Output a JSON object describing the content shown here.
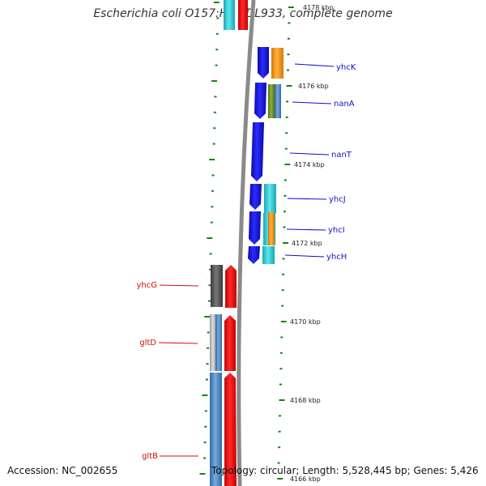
{
  "title": "Escherichia coli O157:H7 EDL933, complete genome",
  "footer": {
    "accession": "Accession: NC_002655",
    "topology": "Topology: circular; Length: 5,528,445 bp; Genes: 5,426"
  },
  "colors": {
    "forward_cds": "#1414e6",
    "reverse_cds": "#ee1111",
    "cyan": "#2cc8d2",
    "orange": "#ff9914",
    "olive": "#6b8e23",
    "steel_blue": "#4a86c0",
    "dark_gray": "#555555",
    "light_gray": "#bbbbbb",
    "tick_green": "#118811",
    "backbone": "#888888"
  },
  "scale_ticks": [
    {
      "label": "4178 kbp"
    },
    {
      "label": "4176 kbp"
    },
    {
      "label": "4174 kbp"
    },
    {
      "label": "4172 kbp"
    },
    {
      "label": "4170 kbp"
    },
    {
      "label": "4168 kbp"
    },
    {
      "label": "4166 kbp"
    }
  ],
  "gene_labels_forward": [
    "yhcK",
    "nanA",
    "nanT",
    "yhcJ",
    "yhcI",
    "yhcH"
  ],
  "gene_labels_reverse": [
    "yhcG",
    "gltD",
    "gltB"
  ]
}
